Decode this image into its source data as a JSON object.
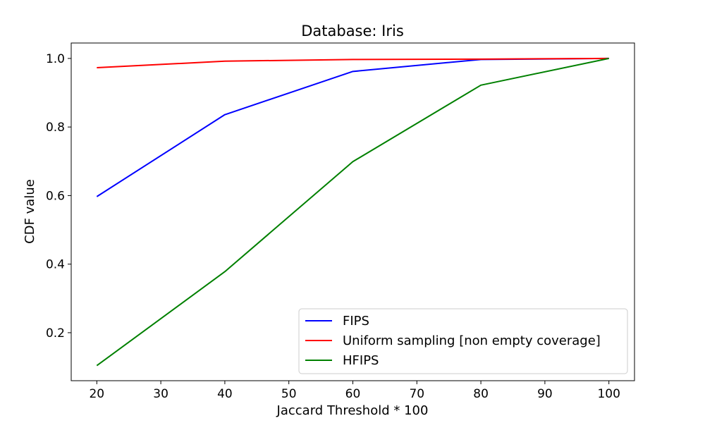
{
  "chart_data": {
    "type": "line",
    "title": "Database: Iris",
    "xlabel": "Jaccard Threshold * 100",
    "ylabel": "CDF value",
    "x": [
      20,
      40,
      60,
      80,
      100
    ],
    "xlim": [
      16,
      104
    ],
    "ylim": [
      0.06,
      1.045
    ],
    "xticks": [
      20,
      30,
      40,
      50,
      60,
      70,
      80,
      90,
      100
    ],
    "yticks": [
      0.2,
      0.4,
      0.6,
      0.8,
      1.0
    ],
    "grid": false,
    "legend_position": "lower-right",
    "series": [
      {
        "name": "FIPS",
        "color": "#0000ff",
        "values": [
          0.597,
          0.836,
          0.962,
          0.997,
          1.0
        ]
      },
      {
        "name": "Uniform sampling [non empty coverage]",
        "color": "#ff0000",
        "values": [
          0.973,
          0.992,
          0.997,
          0.998,
          1.0
        ]
      },
      {
        "name": "HFIPS",
        "color": "#008000",
        "values": [
          0.104,
          0.378,
          0.699,
          0.922,
          1.0
        ]
      }
    ]
  }
}
